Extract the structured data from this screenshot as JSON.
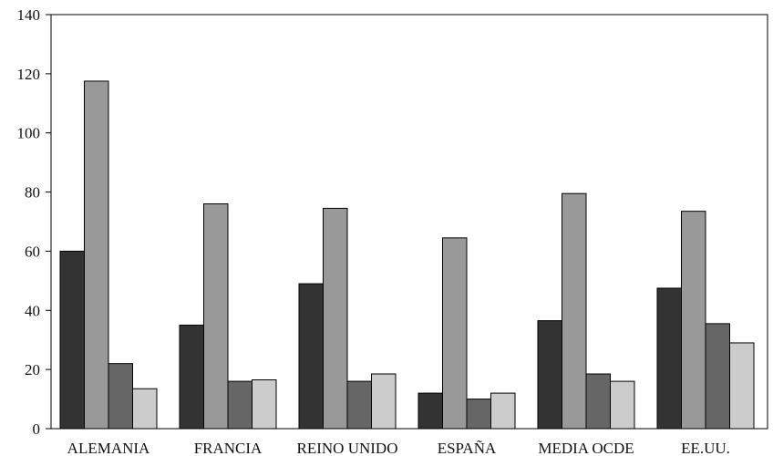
{
  "chart_data": {
    "type": "bar",
    "title": "",
    "xlabel": "",
    "ylabel": "",
    "ylim": [
      0,
      140
    ],
    "yticks": [
      0,
      20,
      40,
      60,
      80,
      100,
      120,
      140
    ],
    "grid": false,
    "legend": "none",
    "categories": [
      "ALEMANIA",
      "FRANCIA",
      "REINO UNIDO",
      "ESPAÑA",
      "MEDIA OCDE",
      "EE.UU."
    ],
    "series": [
      {
        "values": [
          60,
          35,
          49,
          12,
          36.5,
          47.5
        ],
        "color": "#333333"
      },
      {
        "values": [
          117.5,
          76,
          74.5,
          64.5,
          79.5,
          73.5
        ],
        "color": "#999999"
      },
      {
        "values": [
          22,
          16,
          16,
          10,
          18.5,
          35.5
        ],
        "color": "#666666"
      },
      {
        "values": [
          13.5,
          16.5,
          18.5,
          12,
          16,
          29
        ],
        "color": "#cccccc"
      }
    ]
  }
}
